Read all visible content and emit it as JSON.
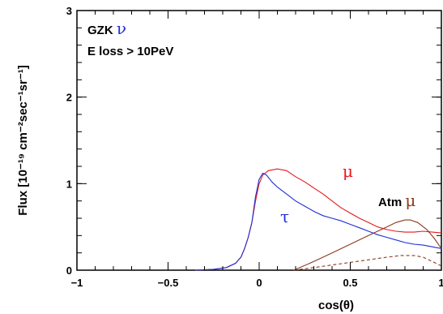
{
  "chart_data": {
    "type": "line",
    "xlabel": "cos(θ)",
    "ylabel": "Flux [10⁻¹⁹ cm⁻²sec⁻¹sr⁻¹]",
    "xlim": [
      -1,
      1
    ],
    "ylim": [
      0,
      3
    ],
    "x_ticks": [
      -1,
      -0.5,
      0,
      0.5,
      1
    ],
    "x_tick_labels": [
      "−1",
      "−0.5",
      "0",
      "0.5",
      "1"
    ],
    "y_ticks": [
      0,
      1,
      2,
      3
    ],
    "y_tick_labels": [
      "0",
      "1",
      "2",
      "3"
    ],
    "grid": false,
    "annotations": {
      "title_line1": "GZK ",
      "title_nu": "ν",
      "title_line2": "E loss > 10PeV",
      "mu_label": "μ",
      "tau_label": "τ",
      "atm_label": "Atm ",
      "atm_mu": "μ"
    },
    "series": [
      {
        "name": "μ",
        "color": "#e8171d",
        "style": "solid",
        "points": [
          [
            -0.35,
            0.0
          ],
          [
            -0.25,
            0.01
          ],
          [
            -0.18,
            0.03
          ],
          [
            -0.13,
            0.08
          ],
          [
            -0.1,
            0.15
          ],
          [
            -0.08,
            0.25
          ],
          [
            -0.06,
            0.38
          ],
          [
            -0.04,
            0.55
          ],
          [
            -0.02,
            0.8
          ],
          [
            0.0,
            1.0
          ],
          [
            0.02,
            1.1
          ],
          [
            0.05,
            1.15
          ],
          [
            0.1,
            1.17
          ],
          [
            0.15,
            1.15
          ],
          [
            0.2,
            1.08
          ],
          [
            0.25,
            1.02
          ],
          [
            0.3,
            0.95
          ],
          [
            0.35,
            0.88
          ],
          [
            0.4,
            0.8
          ],
          [
            0.45,
            0.72
          ],
          [
            0.5,
            0.66
          ],
          [
            0.55,
            0.6
          ],
          [
            0.6,
            0.55
          ],
          [
            0.65,
            0.5
          ],
          [
            0.7,
            0.47
          ],
          [
            0.75,
            0.45
          ],
          [
            0.8,
            0.44
          ],
          [
            0.85,
            0.44
          ],
          [
            0.9,
            0.45
          ],
          [
            0.95,
            0.44
          ],
          [
            1.0,
            0.43
          ]
        ]
      },
      {
        "name": "τ",
        "color": "#1f2fd6",
        "style": "solid",
        "points": [
          [
            -0.35,
            0.0
          ],
          [
            -0.25,
            0.01
          ],
          [
            -0.18,
            0.03
          ],
          [
            -0.13,
            0.08
          ],
          [
            -0.1,
            0.15
          ],
          [
            -0.08,
            0.25
          ],
          [
            -0.06,
            0.38
          ],
          [
            -0.04,
            0.55
          ],
          [
            -0.02,
            0.85
          ],
          [
            0.0,
            1.05
          ],
          [
            0.02,
            1.12
          ],
          [
            0.04,
            1.1
          ],
          [
            0.07,
            1.02
          ],
          [
            0.1,
            0.96
          ],
          [
            0.15,
            0.88
          ],
          [
            0.2,
            0.8
          ],
          [
            0.25,
            0.74
          ],
          [
            0.3,
            0.68
          ],
          [
            0.35,
            0.63
          ],
          [
            0.4,
            0.6
          ],
          [
            0.45,
            0.57
          ],
          [
            0.5,
            0.53
          ],
          [
            0.55,
            0.49
          ],
          [
            0.6,
            0.45
          ],
          [
            0.65,
            0.41
          ],
          [
            0.7,
            0.38
          ],
          [
            0.75,
            0.35
          ],
          [
            0.8,
            0.32
          ],
          [
            0.85,
            0.3
          ],
          [
            0.9,
            0.29
          ],
          [
            0.95,
            0.27
          ],
          [
            1.0,
            0.25
          ]
        ]
      },
      {
        "name": "Atm μ",
        "color": "#8b3a1e",
        "style": "solid",
        "points": [
          [
            0.19,
            0.0
          ],
          [
            0.3,
            0.1
          ],
          [
            0.4,
            0.2
          ],
          [
            0.5,
            0.3
          ],
          [
            0.6,
            0.4
          ],
          [
            0.7,
            0.5
          ],
          [
            0.75,
            0.55
          ],
          [
            0.8,
            0.58
          ],
          [
            0.83,
            0.58
          ],
          [
            0.87,
            0.55
          ],
          [
            0.92,
            0.47
          ],
          [
            0.96,
            0.37
          ],
          [
            1.0,
            0.25
          ]
        ]
      },
      {
        "name": "Atm μ (dashed)",
        "color": "#8b3a1e",
        "style": "dashed",
        "points": [
          [
            0.19,
            0.0
          ],
          [
            0.3,
            0.03
          ],
          [
            0.4,
            0.06
          ],
          [
            0.5,
            0.09
          ],
          [
            0.6,
            0.12
          ],
          [
            0.7,
            0.15
          ],
          [
            0.78,
            0.17
          ],
          [
            0.85,
            0.17
          ],
          [
            0.9,
            0.15
          ],
          [
            0.95,
            0.1
          ],
          [
            1.0,
            0.05
          ]
        ]
      }
    ]
  }
}
